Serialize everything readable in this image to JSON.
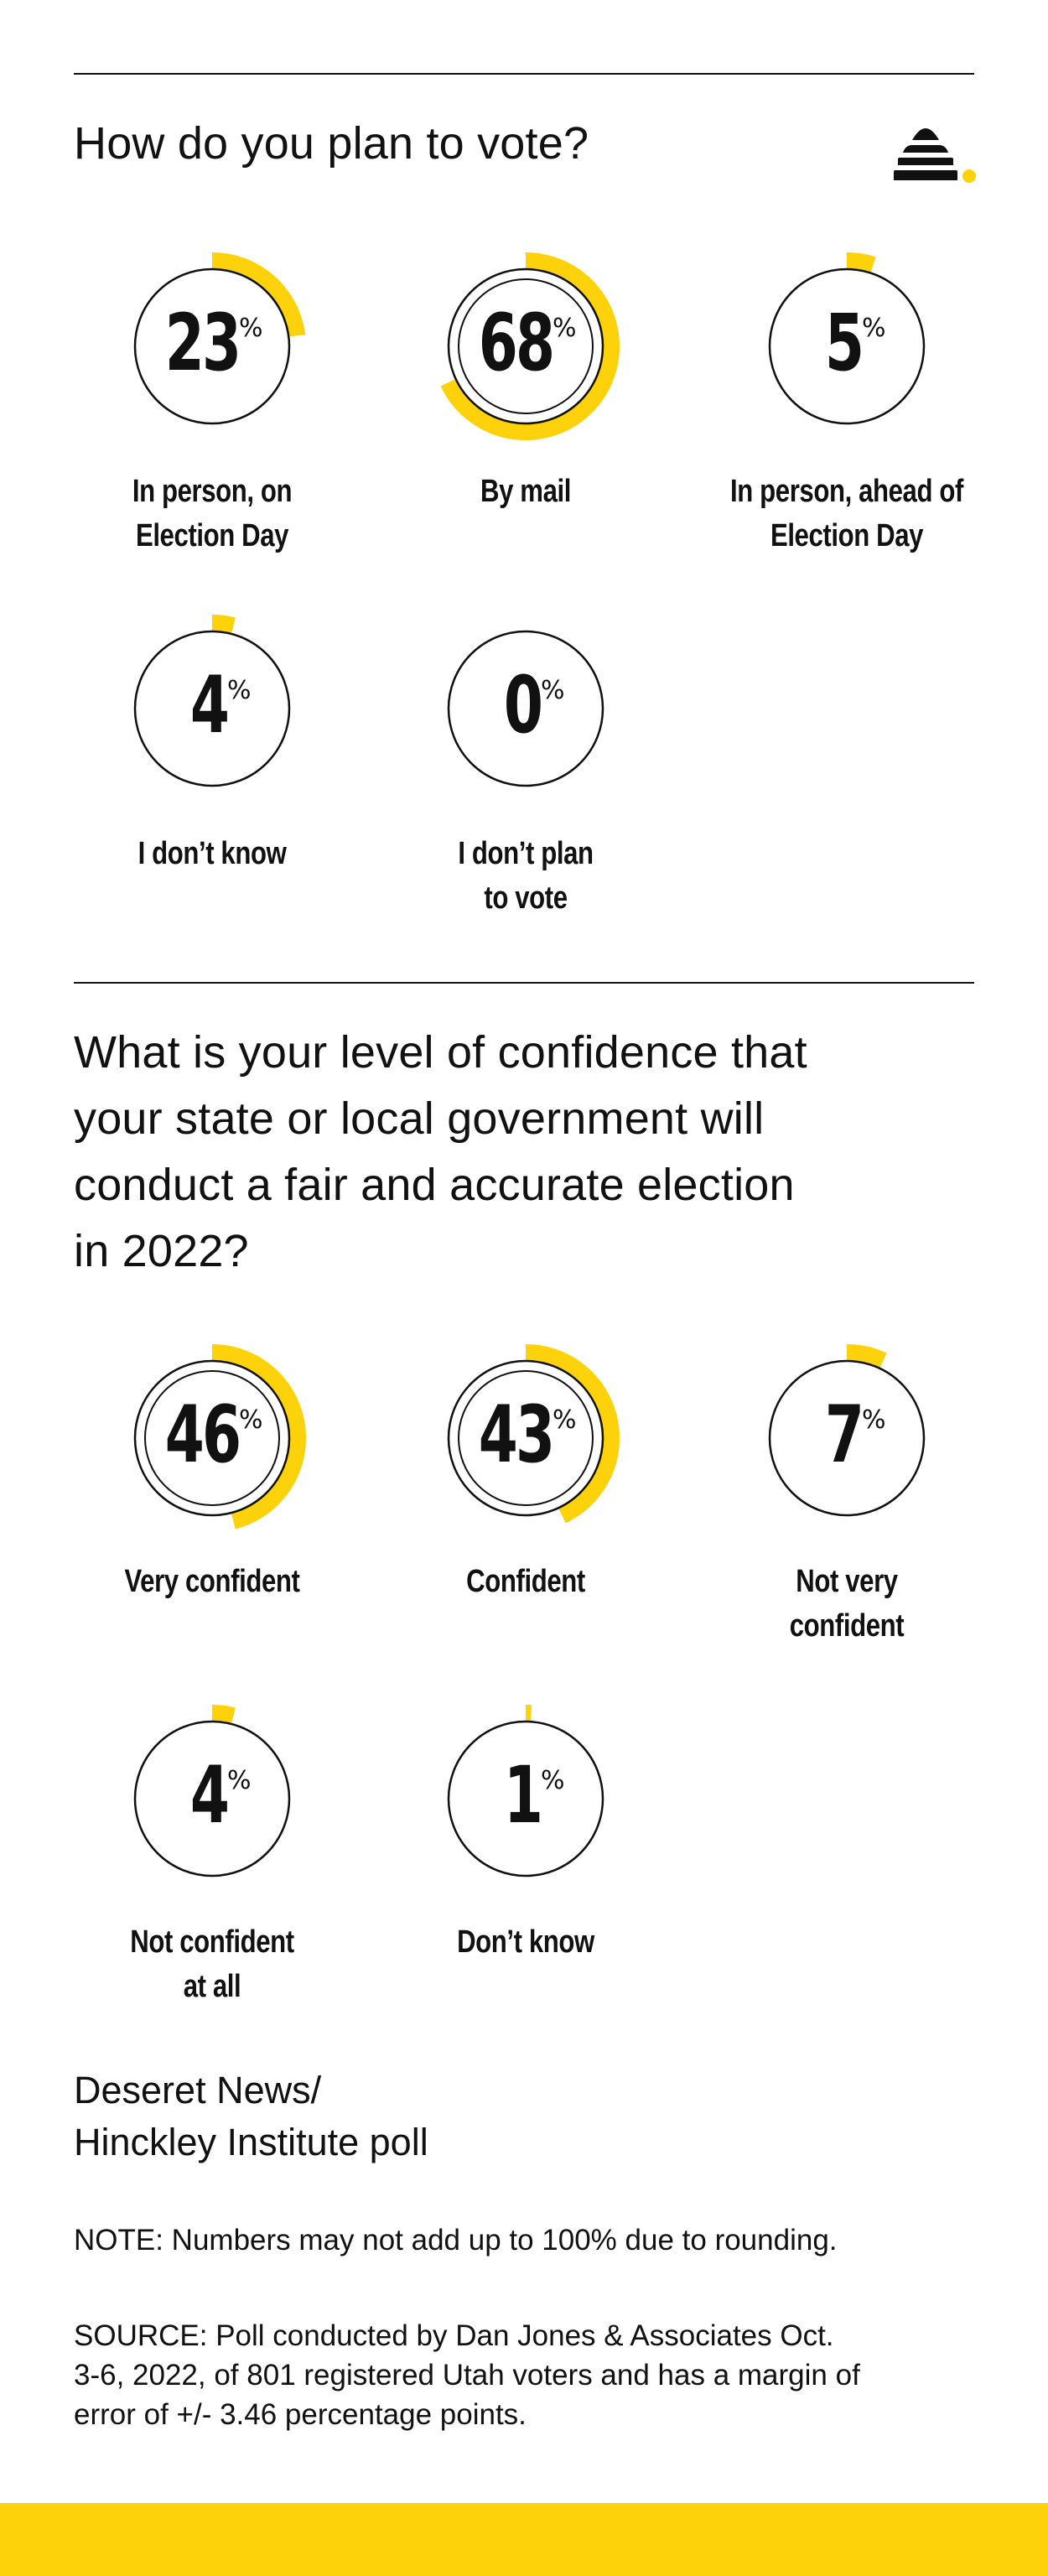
{
  "colors": {
    "accent": "#FDD20A",
    "ink": "#111111",
    "background": "#FFFFFF"
  },
  "logo": {
    "icon": "beehive-icon"
  },
  "chart_data": [
    {
      "type": "donut",
      "title": "How do you plan to vote?",
      "unit": "%",
      "categories": [
        "In person, on Election Day",
        "By mail",
        "In person, ahead of Election Day",
        "I don’t know",
        "I don’t plan to vote"
      ],
      "values": [
        23,
        68,
        5,
        4,
        0
      ],
      "items": [
        {
          "value": 23,
          "value_text": "23",
          "unit": "%",
          "label_lines": [
            "In person, on",
            "Election Day"
          ]
        },
        {
          "value": 68,
          "value_text": "68",
          "unit": "%",
          "label_lines": [
            "By mail"
          ]
        },
        {
          "value": 5,
          "value_text": "5",
          "unit": "%",
          "label_lines": [
            "In person, ahead of",
            "Election Day"
          ]
        },
        {
          "value": 4,
          "value_text": "4",
          "unit": "%",
          "label_lines": [
            "I don’t know"
          ]
        },
        {
          "value": 0,
          "value_text": "0",
          "unit": "%",
          "label_lines": [
            "I don’t plan",
            "to vote"
          ]
        }
      ]
    },
    {
      "type": "donut",
      "title": "What is your level of confidence that your state or local government will conduct a fair and accurate election in 2022?",
      "title_lines": [
        "What is your level of confidence that",
        "your state or local government will",
        "conduct a fair and accurate election",
        "in 2022?"
      ],
      "unit": "%",
      "categories": [
        "Very confident",
        "Confident",
        "Not very confident",
        "Not confident at all",
        "Don’t know"
      ],
      "values": [
        46,
        43,
        7,
        4,
        1
      ],
      "items": [
        {
          "value": 46,
          "value_text": "46",
          "unit": "%",
          "label_lines": [
            "Very confident"
          ]
        },
        {
          "value": 43,
          "value_text": "43",
          "unit": "%",
          "label_lines": [
            "Confident"
          ]
        },
        {
          "value": 7,
          "value_text": "7",
          "unit": "%",
          "label_lines": [
            "Not very",
            "confident"
          ]
        },
        {
          "value": 4,
          "value_text": "4",
          "unit": "%",
          "label_lines": [
            "Not confident",
            "at all"
          ]
        },
        {
          "value": 1,
          "value_text": "1",
          "unit": "%",
          "label_lines": [
            "Don’t know"
          ]
        }
      ]
    }
  ],
  "source_title_lines": [
    "Deseret News/",
    "Hinckley Institute poll"
  ],
  "note": "NOTE: Numbers may not add up to 100% due to rounding.",
  "source_lines": [
    "SOURCE: Poll conducted by Dan Jones & Associates Oct.",
    "3-6, 2022, of 801 registered Utah voters and has a margin of",
    "error of +/- 3.46 percentage points."
  ]
}
